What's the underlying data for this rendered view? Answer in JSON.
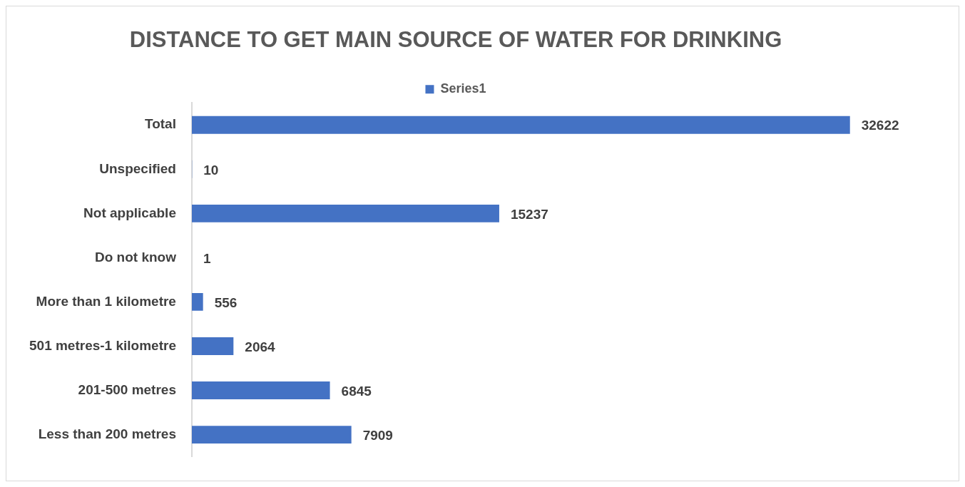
{
  "chart_data": {
    "type": "bar",
    "orientation": "horizontal",
    "title": "DISTANCE TO GET MAIN SOURCE OF WATER FOR DRINKING",
    "categories": [
      "Total",
      "Unspecified",
      "Not applicable",
      "Do not know",
      "More than 1 kilometre",
      "501 metres-1 kilometre",
      "201-500 metres",
      "Less than 200 metres"
    ],
    "series": [
      {
        "name": "Series1",
        "color": "#4472c4",
        "values": [
          32622,
          10,
          15237,
          1,
          556,
          2064,
          6845,
          7909
        ]
      }
    ],
    "data_labels": true,
    "legend": "top",
    "grid": false,
    "tick_labels": "y"
  }
}
